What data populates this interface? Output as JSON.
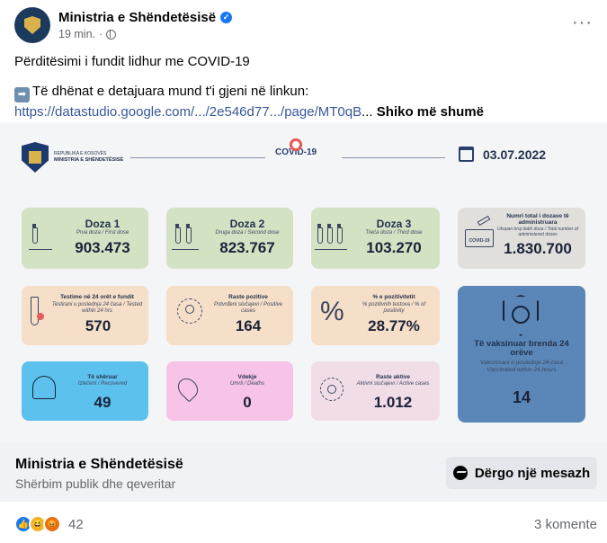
{
  "post": {
    "page_name": "Ministria e Shëndetësisë",
    "time": "19 min.",
    "dot": "·",
    "line1": "Përditësimi i fundit lidhur me COVID-19",
    "line2": "Të dhënat e detajuara mund t'i gjeni në linkun:",
    "arrow_icon": "➡",
    "link": "https://datastudio.google.com/.../2e546d77.../page/MT0qB",
    "ellipsis": "...",
    "see_more": "Shiko më shumë",
    "more_icon": "···"
  },
  "infographic": {
    "ministry_line1": "REPUBLIKA E KOSOVËS",
    "ministry_line2": "MINISTRIA E SHËNDETËSISË",
    "covid_label": "COVID-19",
    "date": "03.07.2022",
    "dose1": {
      "title": "Doza 1",
      "sub": "Prva doza / First dose",
      "value": "903.473"
    },
    "dose2": {
      "title": "Doza 2",
      "sub": "Druga doza / Second dose",
      "value": "823.767"
    },
    "dose3": {
      "title": "Doza 3",
      "sub": "Treća doza / Third dose",
      "value": "103.270"
    },
    "total": {
      "title": "Numri total i dozave të administruara",
      "sub": "Ukupan broj datih doza / Total number of administered doses",
      "value": "1.830.700",
      "tag": "COVID-19"
    },
    "tests": {
      "title": "Testime në 24 orët e fundit",
      "sub": "Testirani u poslednja 24 časa / Tested within 24 hrs",
      "value": "570"
    },
    "positive": {
      "title": "Raste pozitive",
      "sub": "Potvrđeni slučajevi / Positive cases",
      "value": "164"
    },
    "positivity": {
      "title": "% e pozitivitetit",
      "sub": "% pozitivnih testova / % of positivity",
      "value": "28.77%",
      "icon": "%"
    },
    "vaccinated": {
      "title": "Të vaksinuar brenda 24 orëve",
      "sub": "Vakcinisani u poslednja 24 časa Vaccinated within 24 hours",
      "value": "14"
    },
    "recovered": {
      "title": "Të shëruar",
      "sub": "Izlečeni / Recovered",
      "value": "49"
    },
    "deaths": {
      "title": "Vdekje",
      "sub": "Umrli / Deaths",
      "value": "0"
    },
    "active": {
      "title": "Raste aktive",
      "sub": "Aktivni slučajevi / Active cases",
      "value": "1.012"
    }
  },
  "footer": {
    "page_name": "Ministria e Shëndetësisë",
    "category": "Shërbim publik dhe qeveritar",
    "message_button": "Dërgo një mesazh"
  },
  "reactions": {
    "count": "42",
    "comments": "3 komente",
    "like_icon": "👍",
    "haha_icon": "😆",
    "angry_icon": "😡"
  }
}
